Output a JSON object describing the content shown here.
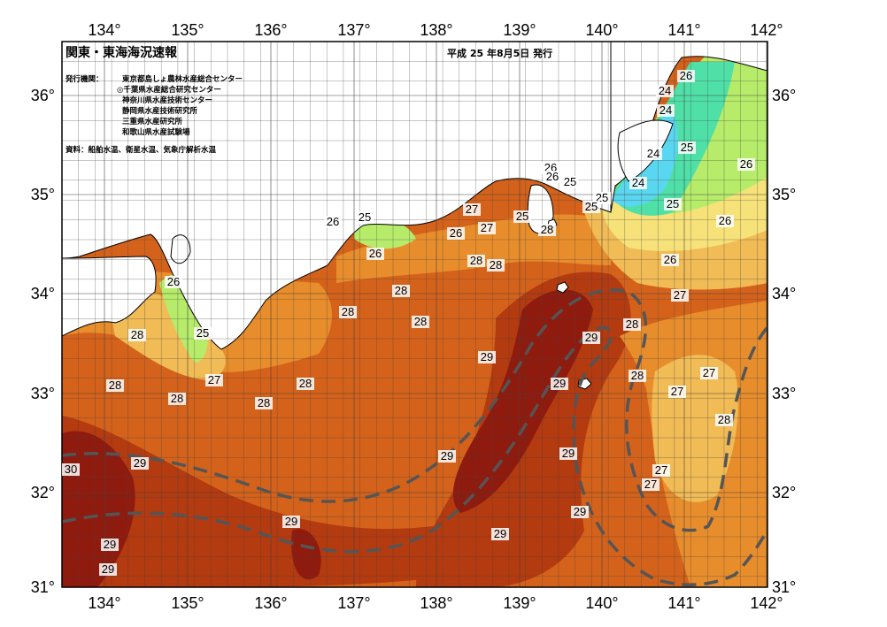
{
  "title": "関東・東海海況速報",
  "date": "平成 25 年8月5日 発行",
  "issuer_label": "発行機関：",
  "issuers": [
    "東京都島しょ農林水産総合センター",
    "◎千葉県水産総合研究センター",
    "神奈川県水産技術センター",
    "静岡県水産技術研究所",
    "三重県水産研究所",
    "和歌山県水産試験場"
  ],
  "source": "資料：船舶水温、衛星水温、気象庁解析水温",
  "lon_ticks": [
    "134°",
    "135°",
    "136°",
    "137°",
    "138°",
    "139°",
    "140°",
    "141°",
    "142°"
  ],
  "lat_ticks": [
    "36°",
    "35°",
    "34°",
    "33°",
    "32°",
    "31°"
  ],
  "contour_labels": [
    "30",
    "29",
    "29",
    "29",
    "29",
    "29",
    "29",
    "29",
    "29",
    "29",
    "29",
    "29",
    "28",
    "28",
    "28",
    "28",
    "28",
    "28",
    "28",
    "28",
    "28",
    "28",
    "28",
    "28",
    "28",
    "28",
    "27",
    "27",
    "27",
    "27",
    "27",
    "27",
    "27",
    "27",
    "26",
    "26",
    "26",
    "26",
    "26",
    "26",
    "26",
    "26",
    "26",
    "26",
    "25",
    "25",
    "25",
    "25",
    "25",
    "25",
    "25",
    "25",
    "24",
    "24",
    "24",
    "24"
  ],
  "colors": {
    "t30": "#8f1a0e",
    "t29": "#b43a10",
    "t28": "#d5621a",
    "t27": "#e88d2c",
    "t26": "#f1bb55",
    "t25": "#f7e27a",
    "t24": "#b6ec6a",
    "t23": "#4fe0a8",
    "t22": "#5ad7f0",
    "land": "#ffffff",
    "kuroshio": "#555555"
  }
}
